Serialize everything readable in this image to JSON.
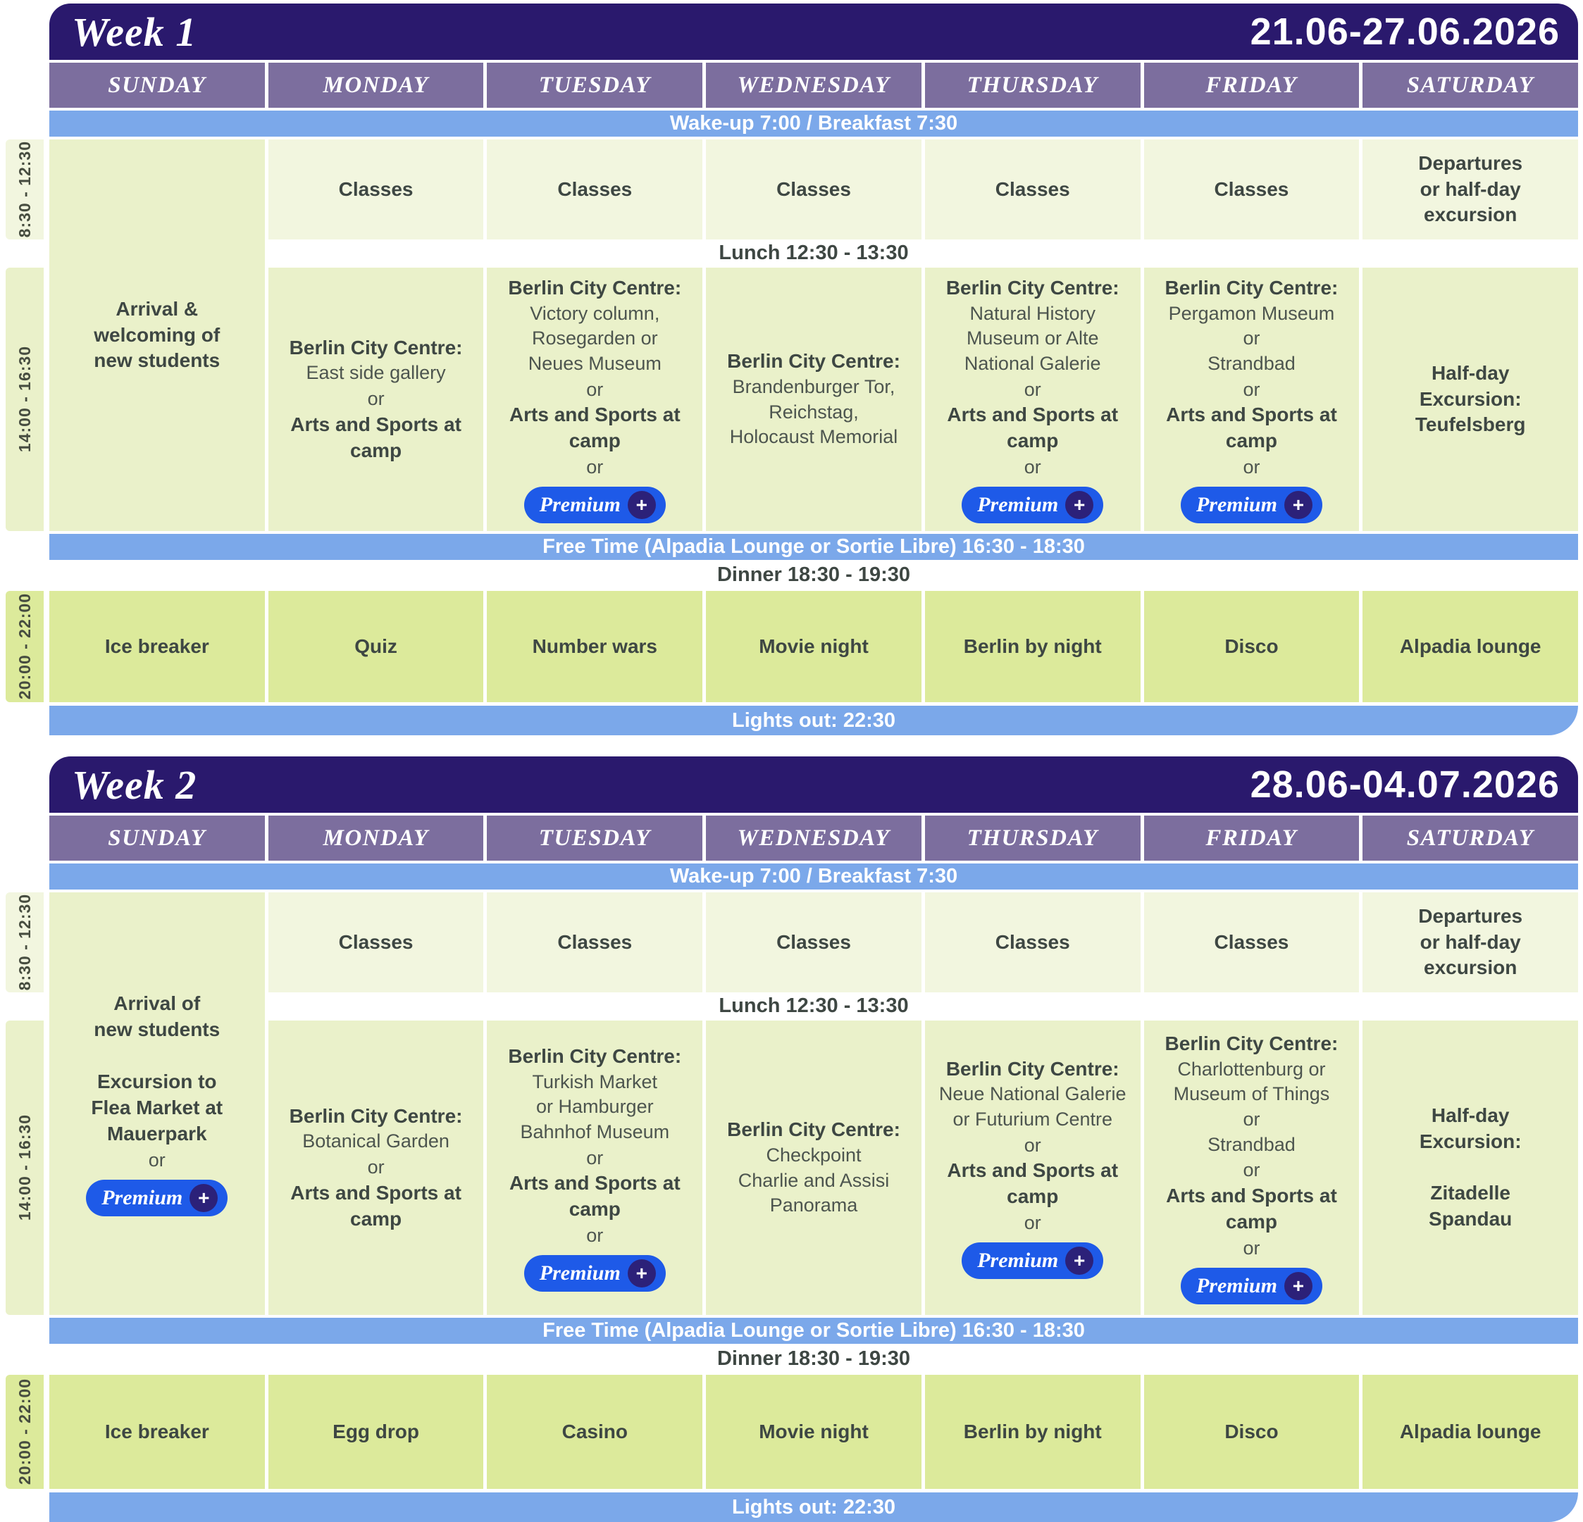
{
  "time_labels": {
    "morning": "8:30 - 12:30",
    "afternoon": "14:00 - 16:30",
    "evening": "20:00 - 22:00"
  },
  "bars": {
    "wake": "Wake-up 7:00 /  Breakfast 7:30",
    "lunch": "Lunch 12:30 - 13:30",
    "free": "Free Time (Alpadia Lounge or Sortie Libre) 16:30 - 18:30",
    "dinner": "Dinner 18:30 - 19:30",
    "lights": "Lights out: 22:30"
  },
  "badge": {
    "label": "Premium",
    "plus": "+"
  },
  "colors": {
    "banner": "#2a196d",
    "day_header": "#7c6e9e",
    "blue_bar": "#7ba8ea",
    "morning_green": "#f2f6df",
    "afternoon_green": "#eaf1ca",
    "evening_green": "#dcea9b",
    "premium_blue": "#1e5ae8"
  },
  "weeks": [
    {
      "title": "Week 1",
      "date_range": "21.06-27.06.2026",
      "day_headers": [
        "SUNDAY",
        "MONDAY",
        "TUESDAY",
        "WEDNESDAY",
        "THURSDAY",
        "FRIDAY",
        "SATURDAY"
      ],
      "sunday": {
        "t1": "Arrival &\nwelcoming of\nnew students",
        "o1": "",
        "premium": false
      },
      "morning": [
        "Classes",
        "Classes",
        "Classes",
        "Classes",
        "Classes",
        "Departures\nor half-day\nexcursion"
      ],
      "afternoon": [
        {
          "t1": "Berlin City Centre:",
          "r1": "East side gallery",
          "o1": "or",
          "b2": "Arts and Sports at camp",
          "o2": "",
          "premium": false
        },
        {
          "t1": "Berlin City Centre:",
          "r1": "Victory column,\nRosegarden or\nNeues Museum",
          "o1": "or",
          "b2": "Arts and Sports at camp",
          "o2": "or",
          "premium": true
        },
        {
          "t1": "Berlin City Centre:",
          "r1": "Brandenburger Tor,\nReichstag,\nHolocaust Memorial",
          "o1": "",
          "b2": "",
          "o2": "",
          "premium": false
        },
        {
          "t1": "Berlin City Centre:",
          "r1": "Natural History\nMuseum or Alte\nNational Galerie",
          "o1": "or",
          "b2": "Arts and Sports at camp",
          "o2": "or",
          "premium": true
        },
        {
          "t1": "Berlin City Centre:",
          "r1": "Pergamon Museum\nor\nStrandbad",
          "o1": "or",
          "b2": "Arts and Sports at camp",
          "o2": "or",
          "premium": true
        },
        {
          "t1": "Half-day\nExcursion:\nTeufelsberg",
          "r1": "",
          "o1": "",
          "b2": "",
          "o2": "",
          "premium": false
        }
      ],
      "evening": [
        "Ice breaker",
        "Quiz",
        "Number wars",
        "Movie night",
        "Berlin by night",
        "Disco",
        "Alpadia lounge"
      ]
    },
    {
      "title": "Week 2",
      "date_range": "28.06-04.07.2026",
      "day_headers": [
        "SUNDAY",
        "MONDAY",
        "TUESDAY",
        "WEDNESDAY",
        "THURSDAY",
        "FRIDAY",
        "SATURDAY"
      ],
      "sunday": {
        "t1": "Arrival of\nnew students\n\nExcursion to\nFlea Market at\nMauerpark",
        "o1": "or",
        "premium": true
      },
      "morning": [
        "Classes",
        "Classes",
        "Classes",
        "Classes",
        "Classes",
        "Departures\nor half-day\nexcursion"
      ],
      "afternoon": [
        {
          "t1": "Berlin City Centre:",
          "r1": "Botanical Garden",
          "o1": "or",
          "b2": "Arts and Sports at camp",
          "o2": "",
          "premium": false
        },
        {
          "t1": "Berlin City Centre:",
          "r1": "Turkish Market\nor Hamburger\nBahnhof Museum",
          "o1": "or",
          "b2": "Arts and Sports at camp",
          "o2": "or",
          "premium": true
        },
        {
          "t1": "Berlin City Centre:",
          "r1": "Checkpoint\nCharlie and Assisi\nPanorama",
          "o1": "",
          "b2": "",
          "o2": "",
          "premium": false
        },
        {
          "t1": "Berlin City Centre:",
          "r1": "Neue National Galerie\nor Futurium Centre",
          "o1": "or",
          "b2": "Arts and Sports at camp",
          "o2": "or",
          "premium": true
        },
        {
          "t1": "Berlin City Centre:",
          "r1": "Charlottenburg or\nMuseum of Things\nor\nStrandbad",
          "o1": "or",
          "b2": "Arts and Sports at camp",
          "o2": "or",
          "premium": true
        },
        {
          "t1": "Half-day\nExcursion:\n\nZitadelle\nSpandau",
          "r1": "",
          "o1": "",
          "b2": "",
          "o2": "",
          "premium": false
        }
      ],
      "evening": [
        "Ice breaker",
        "Egg drop",
        "Casino",
        "Movie night",
        "Berlin by night",
        "Disco",
        "Alpadia lounge"
      ]
    }
  ]
}
